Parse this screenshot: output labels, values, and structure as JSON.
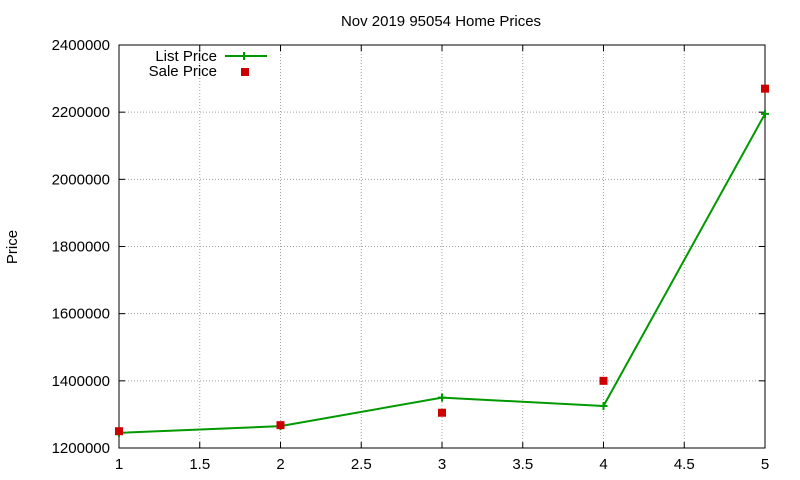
{
  "chart_data": {
    "type": "line",
    "title": "Nov 2019 95054 Home Prices",
    "xlabel": "",
    "ylabel": "Price",
    "xlim": [
      1,
      5
    ],
    "ylim": [
      1200000,
      2400000
    ],
    "x_ticks": [
      "1",
      "1.5",
      "2",
      "2.5",
      "3",
      "3.5",
      "4",
      "4.5",
      "5"
    ],
    "y_ticks": [
      "1200000",
      "1400000",
      "1600000",
      "1800000",
      "2000000",
      "2200000",
      "2400000"
    ],
    "grid": true,
    "legend_position": "top-left",
    "series": [
      {
        "name": "List Price",
        "style": "line+cross",
        "color": "#009900",
        "x": [
          1,
          2,
          3,
          4,
          5
        ],
        "y": [
          1245000,
          1265000,
          1350000,
          1325000,
          2195000
        ]
      },
      {
        "name": "Sale Price",
        "style": "square",
        "color": "#cc0000",
        "x": [
          1,
          2,
          3,
          4,
          5
        ],
        "y": [
          1250000,
          1268000,
          1305000,
          1400000,
          2270000
        ]
      }
    ]
  }
}
